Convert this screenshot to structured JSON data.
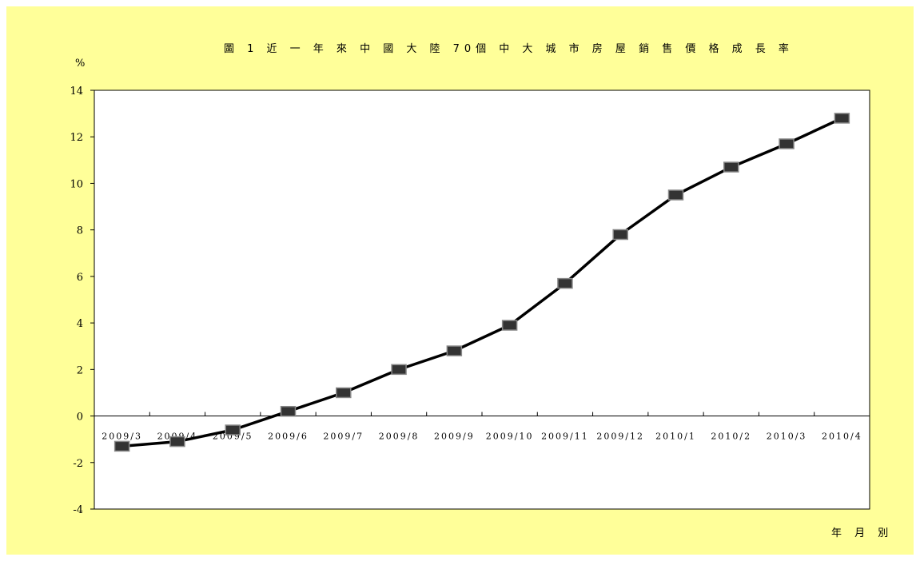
{
  "chart_data": {
    "type": "line",
    "title": "圖 1 近 一 年 來 中 國 大 陸 70個 中 大 城 市 房 屋 銷 售 價 格 成 長 率",
    "ylabel": "%",
    "xlabel": "年 月 別",
    "categories": [
      "2009/3",
      "2009/4",
      "2009/5",
      "2009/6",
      "2009/7",
      "2009/8",
      "2009/9",
      "2009/10",
      "2009/11",
      "2009/12",
      "2010/1",
      "2010/2",
      "2010/3",
      "2010/4"
    ],
    "x_tick_labels": [
      "2009/3",
      "2009/4",
      "2009/5",
      "2009/6",
      "2009/7",
      "2009/8",
      "2009/9",
      "2009/10",
      "2009/11",
      "2009/12",
      "2010/1",
      "2010/2",
      "2010/3",
      "2010/4"
    ],
    "series": [
      {
        "values": [
          -1.3,
          -1.1,
          -0.6,
          0.2,
          1.0,
          2.0,
          2.8,
          3.9,
          5.7,
          7.8,
          9.5,
          10.7,
          11.7,
          12.8
        ]
      }
    ],
    "ylim": [
      -4,
      14
    ],
    "yticks": [
      -4,
      -2,
      0,
      2,
      4,
      6,
      8,
      10,
      12,
      14
    ],
    "grid": false,
    "legend": "none",
    "colors": {
      "line": "#000000",
      "marker_fill": "#333333",
      "marker_stroke": "#888888",
      "background": "#ffff99",
      "plot_background": "#ffffff"
    }
  }
}
